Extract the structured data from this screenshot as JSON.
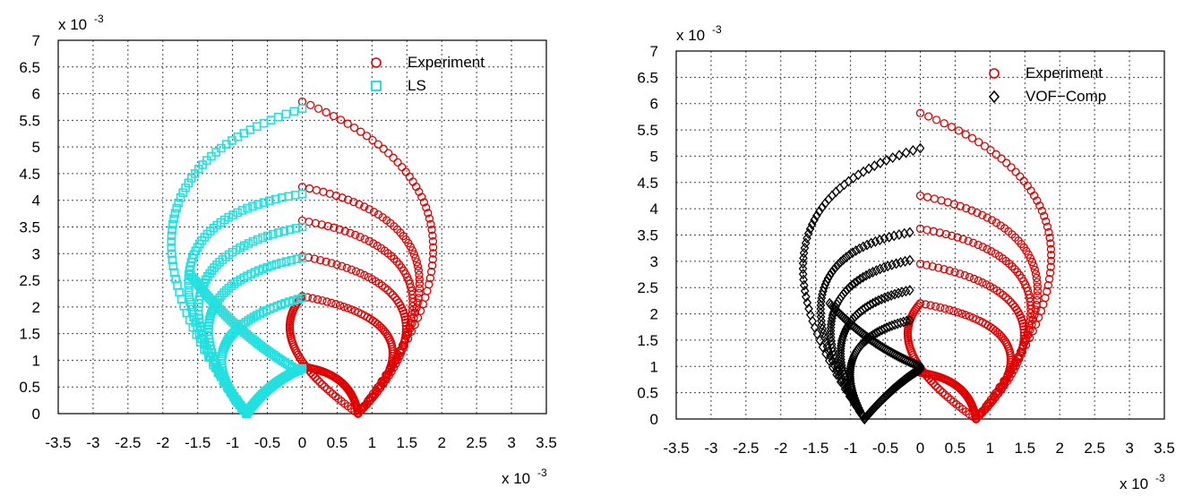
{
  "chart_data": [
    {
      "type": "scatter",
      "panel": "left",
      "x_multiplier_label": "x 10",
      "x_multiplier_exp": "-3",
      "y_multiplier_label": "x 10",
      "y_multiplier_exp": "-3",
      "xlim": [
        -3.5,
        3.5
      ],
      "ylim": [
        0,
        7
      ],
      "xticks": [
        "-3.5",
        "-3",
        "-2.5",
        "-2",
        "-1.5",
        "-1",
        "-0.5",
        "0",
        "0.5",
        "1",
        "1.5",
        "2",
        "2.5",
        "3",
        "3.5"
      ],
      "yticks": [
        "0",
        "0.5",
        "1",
        "1.5",
        "2",
        "2.5",
        "3",
        "3.5",
        "4",
        "4.5",
        "5",
        "5.5",
        "6",
        "6.5",
        "7"
      ],
      "grid": true,
      "legend_position": "top-right",
      "series": [
        {
          "name": "Experiment",
          "marker": "circle",
          "color": "#e00000",
          "curves": [
            {
              "start": [
                0,
                5.85
              ],
              "mid": [
                1.85,
                3.5
              ],
              "end": [
                0.8,
                0
              ]
            },
            {
              "start": [
                0,
                4.25
              ],
              "mid": [
                1.65,
                2.8
              ],
              "end": [
                0.8,
                0
              ]
            },
            {
              "start": [
                0,
                3.62
              ],
              "mid": [
                1.55,
                2.4
              ],
              "end": [
                0.8,
                0
              ]
            },
            {
              "start": [
                0,
                2.95
              ],
              "mid": [
                1.45,
                1.9
              ],
              "end": [
                0.8,
                0
              ]
            },
            {
              "start": [
                0,
                2.2
              ],
              "mid": [
                1.25,
                1.4
              ],
              "end": [
                0.8,
                0
              ]
            },
            {
              "start": [
                0,
                0.88
              ],
              "mid": [
                0.55,
                0.6
              ],
              "end": [
                0.8,
                0
              ]
            },
            {
              "start": [
                0,
                2.2
              ],
              "mid": [
                -0.1,
                1.2
              ],
              "end": [
                0.8,
                0
              ]
            }
          ]
        },
        {
          "name": "LS",
          "marker": "square",
          "color": "#22e0e0",
          "curves": [
            {
              "start": [
                0,
                5.72
              ],
              "mid": [
                -1.85,
                3.6
              ],
              "end": [
                -0.8,
                0
              ]
            },
            {
              "start": [
                0,
                4.12
              ],
              "mid": [
                -1.6,
                2.8
              ],
              "end": [
                -0.8,
                0
              ]
            },
            {
              "start": [
                0,
                3.5
              ],
              "mid": [
                -1.45,
                2.3
              ],
              "end": [
                -0.8,
                0
              ]
            },
            {
              "start": [
                0,
                2.92
              ],
              "mid": [
                -1.3,
                1.9
              ],
              "end": [
                -0.8,
                0
              ]
            },
            {
              "start": [
                0,
                2.17
              ],
              "mid": [
                -1.1,
                1.3
              ],
              "end": [
                -0.8,
                0
              ]
            },
            {
              "start": [
                0,
                0.85
              ],
              "mid": [
                -0.45,
                0.5
              ],
              "end": [
                -0.8,
                0
              ]
            },
            {
              "start": [
                -1.6,
                2.6
              ],
              "mid": [
                -0.9,
                1.6
              ],
              "end": [
                -0.05,
                0.8
              ]
            }
          ]
        }
      ]
    },
    {
      "type": "scatter",
      "panel": "right",
      "x_multiplier_label": "x 10",
      "x_multiplier_exp": "-3",
      "y_multiplier_label": "x 10",
      "y_multiplier_exp": "-3",
      "xlim": [
        -3.5,
        3.5
      ],
      "ylim": [
        0,
        7
      ],
      "xticks": [
        "-3.5",
        "-3",
        "-2.5",
        "-2",
        "-1.5",
        "-1",
        "-0.5",
        "0",
        "0.5",
        "1",
        "1.5",
        "2",
        "2.5",
        "3",
        "3.5"
      ],
      "yticks": [
        "0",
        "0.5",
        "1",
        "1.5",
        "2",
        "2.5",
        "3",
        "3.5",
        "4",
        "4.5",
        "5",
        "5.5",
        "6",
        "6.5",
        "7"
      ],
      "grid": true,
      "legend_position": "top-right",
      "series": [
        {
          "name": "Experiment",
          "marker": "circle",
          "color": "#e00000",
          "curves": [
            {
              "start": [
                0,
                5.82
              ],
              "mid": [
                1.85,
                3.5
              ],
              "end": [
                0.8,
                0
              ]
            },
            {
              "start": [
                0,
                4.25
              ],
              "mid": [
                1.65,
                2.8
              ],
              "end": [
                0.8,
                0
              ]
            },
            {
              "start": [
                0,
                3.62
              ],
              "mid": [
                1.55,
                2.4
              ],
              "end": [
                0.8,
                0
              ]
            },
            {
              "start": [
                0,
                2.95
              ],
              "mid": [
                1.45,
                1.9
              ],
              "end": [
                0.8,
                0
              ]
            },
            {
              "start": [
                0,
                2.2
              ],
              "mid": [
                1.25,
                1.4
              ],
              "end": [
                0.8,
                0
              ]
            },
            {
              "start": [
                0,
                0.88
              ],
              "mid": [
                0.55,
                0.6
              ],
              "end": [
                0.8,
                0
              ]
            },
            {
              "start": [
                0,
                2.2
              ],
              "mid": [
                -0.1,
                1.2
              ],
              "end": [
                0.8,
                0
              ]
            }
          ]
        },
        {
          "name": "VOF−Comp",
          "marker": "diamond",
          "color": "#000000",
          "curves": [
            {
              "start": [
                0,
                5.15
              ],
              "mid": [
                -1.65,
                3.3
              ],
              "end": [
                -0.8,
                0
              ]
            },
            {
              "start": [
                -0.15,
                3.55
              ],
              "mid": [
                -1.4,
                2.4
              ],
              "end": [
                -0.8,
                0
              ]
            },
            {
              "start": [
                -0.15,
                3.02
              ],
              "mid": [
                -1.25,
                2.0
              ],
              "end": [
                -0.8,
                0
              ]
            },
            {
              "start": [
                -0.15,
                2.45
              ],
              "mid": [
                -1.1,
                1.6
              ],
              "end": [
                -0.8,
                0
              ]
            },
            {
              "start": [
                -0.15,
                1.88
              ],
              "mid": [
                -0.95,
                1.2
              ],
              "end": [
                -0.8,
                0
              ]
            },
            {
              "start": [
                0,
                0.95
              ],
              "mid": [
                -0.4,
                0.55
              ],
              "end": [
                -0.8,
                0
              ]
            },
            {
              "start": [
                -1.3,
                2.2
              ],
              "mid": [
                -0.7,
                1.5
              ],
              "end": [
                0,
                1.0
              ]
            }
          ]
        }
      ]
    }
  ]
}
